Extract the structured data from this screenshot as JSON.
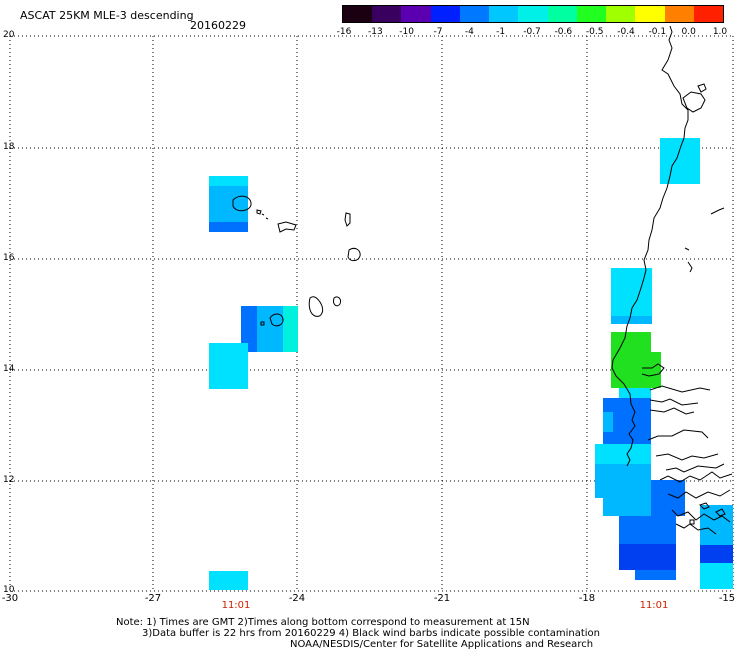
{
  "header": {
    "title": "ASCAT 25KM MLE-3 descending",
    "date": "20160229"
  },
  "colorbar": {
    "labels": [
      "-16",
      "-13",
      "-10",
      "-7",
      "-4",
      "-1",
      "-0.7",
      "-0.6",
      "-0.5",
      "-0.4",
      "-0.1",
      "0.0",
      "1.0"
    ],
    "colors": [
      "#1a0010",
      "#3a0060",
      "#5a00b0",
      "#0020ff",
      "#0078ff",
      "#00c8ff",
      "#00f0e8",
      "#00ffa0",
      "#20ff20",
      "#a0ff00",
      "#ffff00",
      "#ff8000",
      "#ff2000"
    ]
  },
  "map": {
    "lat_ticks": [
      "20",
      "18",
      "16",
      "14",
      "12",
      "10"
    ],
    "lon_ticks": [
      "-30",
      "-27",
      "-24",
      "-21",
      "-18",
      "-15"
    ],
    "pass_times": [
      "11:01",
      "11:01"
    ],
    "colors": {
      "cyan": "#00e0ff",
      "lightblue": "#00b8ff",
      "blue": "#0070ff",
      "deepblue": "#0040f0",
      "green": "#20e020",
      "teal": "#00f0e0",
      "red_label": "#cc2200"
    }
  },
  "notes": {
    "line1": "Note: 1) Times are GMT 2)Times along bottom correspond to measurement at 15N",
    "line2": "3)Data buffer is 22 hrs from 20160229 4) Black wind barbs indicate possible contamination",
    "line3": "NOAA/NESDIS/Center for Satellite Applications and Research"
  }
}
